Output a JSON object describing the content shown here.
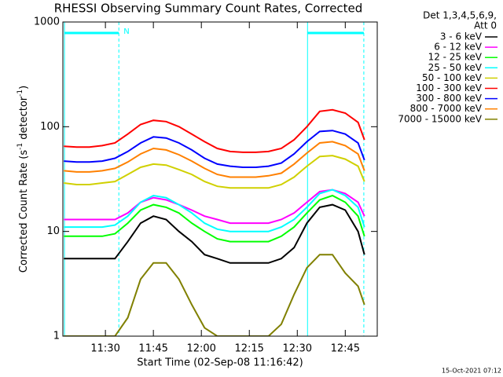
{
  "chart_data": {
    "type": "line",
    "title": "RHESSI Observing Summary Count Rates, Corrected",
    "xlabel": "Start Time (02-Sep-08 11:16:42)",
    "ylabel": [
      "Corrected Count Rate (s",
      "-1",
      " detector",
      "-1",
      ")"
    ],
    "legend_header": [
      "Det 1,3,4,5,6,9,",
      "Att 0"
    ],
    "timestamp": "15-Oct-2021 07:12",
    "log_y": true,
    "legend": "outside-right",
    "xlim": [
      676.7,
      775
    ],
    "ylim": [
      1,
      1000
    ],
    "xticks": [
      {
        "value": 690,
        "label": "11:30"
      },
      {
        "value": 705,
        "label": "11:45"
      },
      {
        "value": 720,
        "label": "12:00"
      },
      {
        "value": 735,
        "label": "12:15"
      },
      {
        "value": 750,
        "label": "12:30"
      },
      {
        "value": 765,
        "label": "12:45"
      }
    ],
    "yticks": [
      1,
      10,
      100,
      1000
    ],
    "night_label": "N",
    "night_level": 785,
    "night": [
      {
        "start": 677.2,
        "end": 694.2
      },
      {
        "start": 753.2,
        "end": 770.8
      }
    ],
    "x": [
      677,
      681,
      685,
      689,
      693,
      697,
      701,
      705,
      709,
      713,
      717,
      721,
      725,
      729,
      733,
      737,
      741,
      745,
      749,
      753,
      757,
      761,
      765,
      769,
      771
    ],
    "series": [
      {
        "name": "3 - 6 keV",
        "color": "#000000",
        "values": [
          5.5,
          5.5,
          5.5,
          5.5,
          5.5,
          8,
          12,
          14,
          13,
          10,
          8,
          6,
          5.5,
          5,
          5,
          5,
          5,
          5.5,
          7,
          12,
          17,
          18,
          16,
          10,
          6
        ]
      },
      {
        "name": "6 - 12 keV",
        "color": "#ff00ff",
        "values": [
          13,
          13,
          13,
          13,
          13,
          15,
          19,
          21,
          20,
          18,
          16,
          14,
          13,
          12,
          12,
          12,
          12,
          13,
          15,
          19,
          24,
          25,
          23,
          19,
          14
        ]
      },
      {
        "name": "12 - 25 keV",
        "color": "#00ff00",
        "values": [
          9,
          9,
          9,
          9,
          9.5,
          12,
          16,
          18,
          17,
          15,
          12,
          10,
          8.5,
          8,
          8,
          8,
          8,
          9,
          11,
          15,
          20,
          22,
          19,
          14,
          9
        ]
      },
      {
        "name": "25 - 50 keV",
        "color": "#00ffff",
        "values": [
          11,
          11,
          11,
          11,
          11.5,
          14,
          19,
          22,
          21,
          18,
          15,
          12,
          10.5,
          10,
          10,
          10,
          10,
          11,
          13,
          17,
          23,
          25,
          22,
          17,
          11
        ]
      },
      {
        "name": "50 - 100 keV",
        "color": "#d0d000",
        "values": [
          29,
          28,
          28,
          29,
          30,
          35,
          41,
          44,
          43,
          39,
          35,
          30,
          27,
          26,
          26,
          26,
          26,
          28,
          33,
          42,
          52,
          53,
          49,
          42,
          30
        ]
      },
      {
        "name": "100 - 300 keV",
        "color": "#ff0000",
        "values": [
          65,
          64,
          64,
          66,
          70,
          85,
          105,
          115,
          112,
          100,
          85,
          72,
          62,
          58,
          57,
          57,
          58,
          62,
          75,
          100,
          140,
          145,
          135,
          110,
          75
        ]
      },
      {
        "name": "300 - 800 keV",
        "color": "#0000ff",
        "values": [
          47,
          46,
          46,
          47,
          50,
          58,
          70,
          80,
          78,
          70,
          60,
          50,
          44,
          42,
          41,
          41,
          42,
          45,
          55,
          72,
          90,
          92,
          85,
          70,
          48
        ]
      },
      {
        "name": "800 - 7000 keV",
        "color": "#ff8000",
        "values": [
          38,
          37,
          37,
          38,
          40,
          46,
          55,
          62,
          60,
          54,
          47,
          40,
          35,
          33,
          33,
          33,
          34,
          36,
          44,
          56,
          70,
          72,
          66,
          55,
          38
        ]
      },
      {
        "name": "7000 - 15000 keV",
        "color": "#808000",
        "values": [
          1,
          1,
          1,
          1,
          1,
          1.5,
          3.5,
          5,
          5,
          3.5,
          2,
          1.2,
          1,
          1,
          1,
          1,
          1,
          1.3,
          2.5,
          4.5,
          6,
          6,
          4,
          3,
          2
        ]
      }
    ]
  }
}
